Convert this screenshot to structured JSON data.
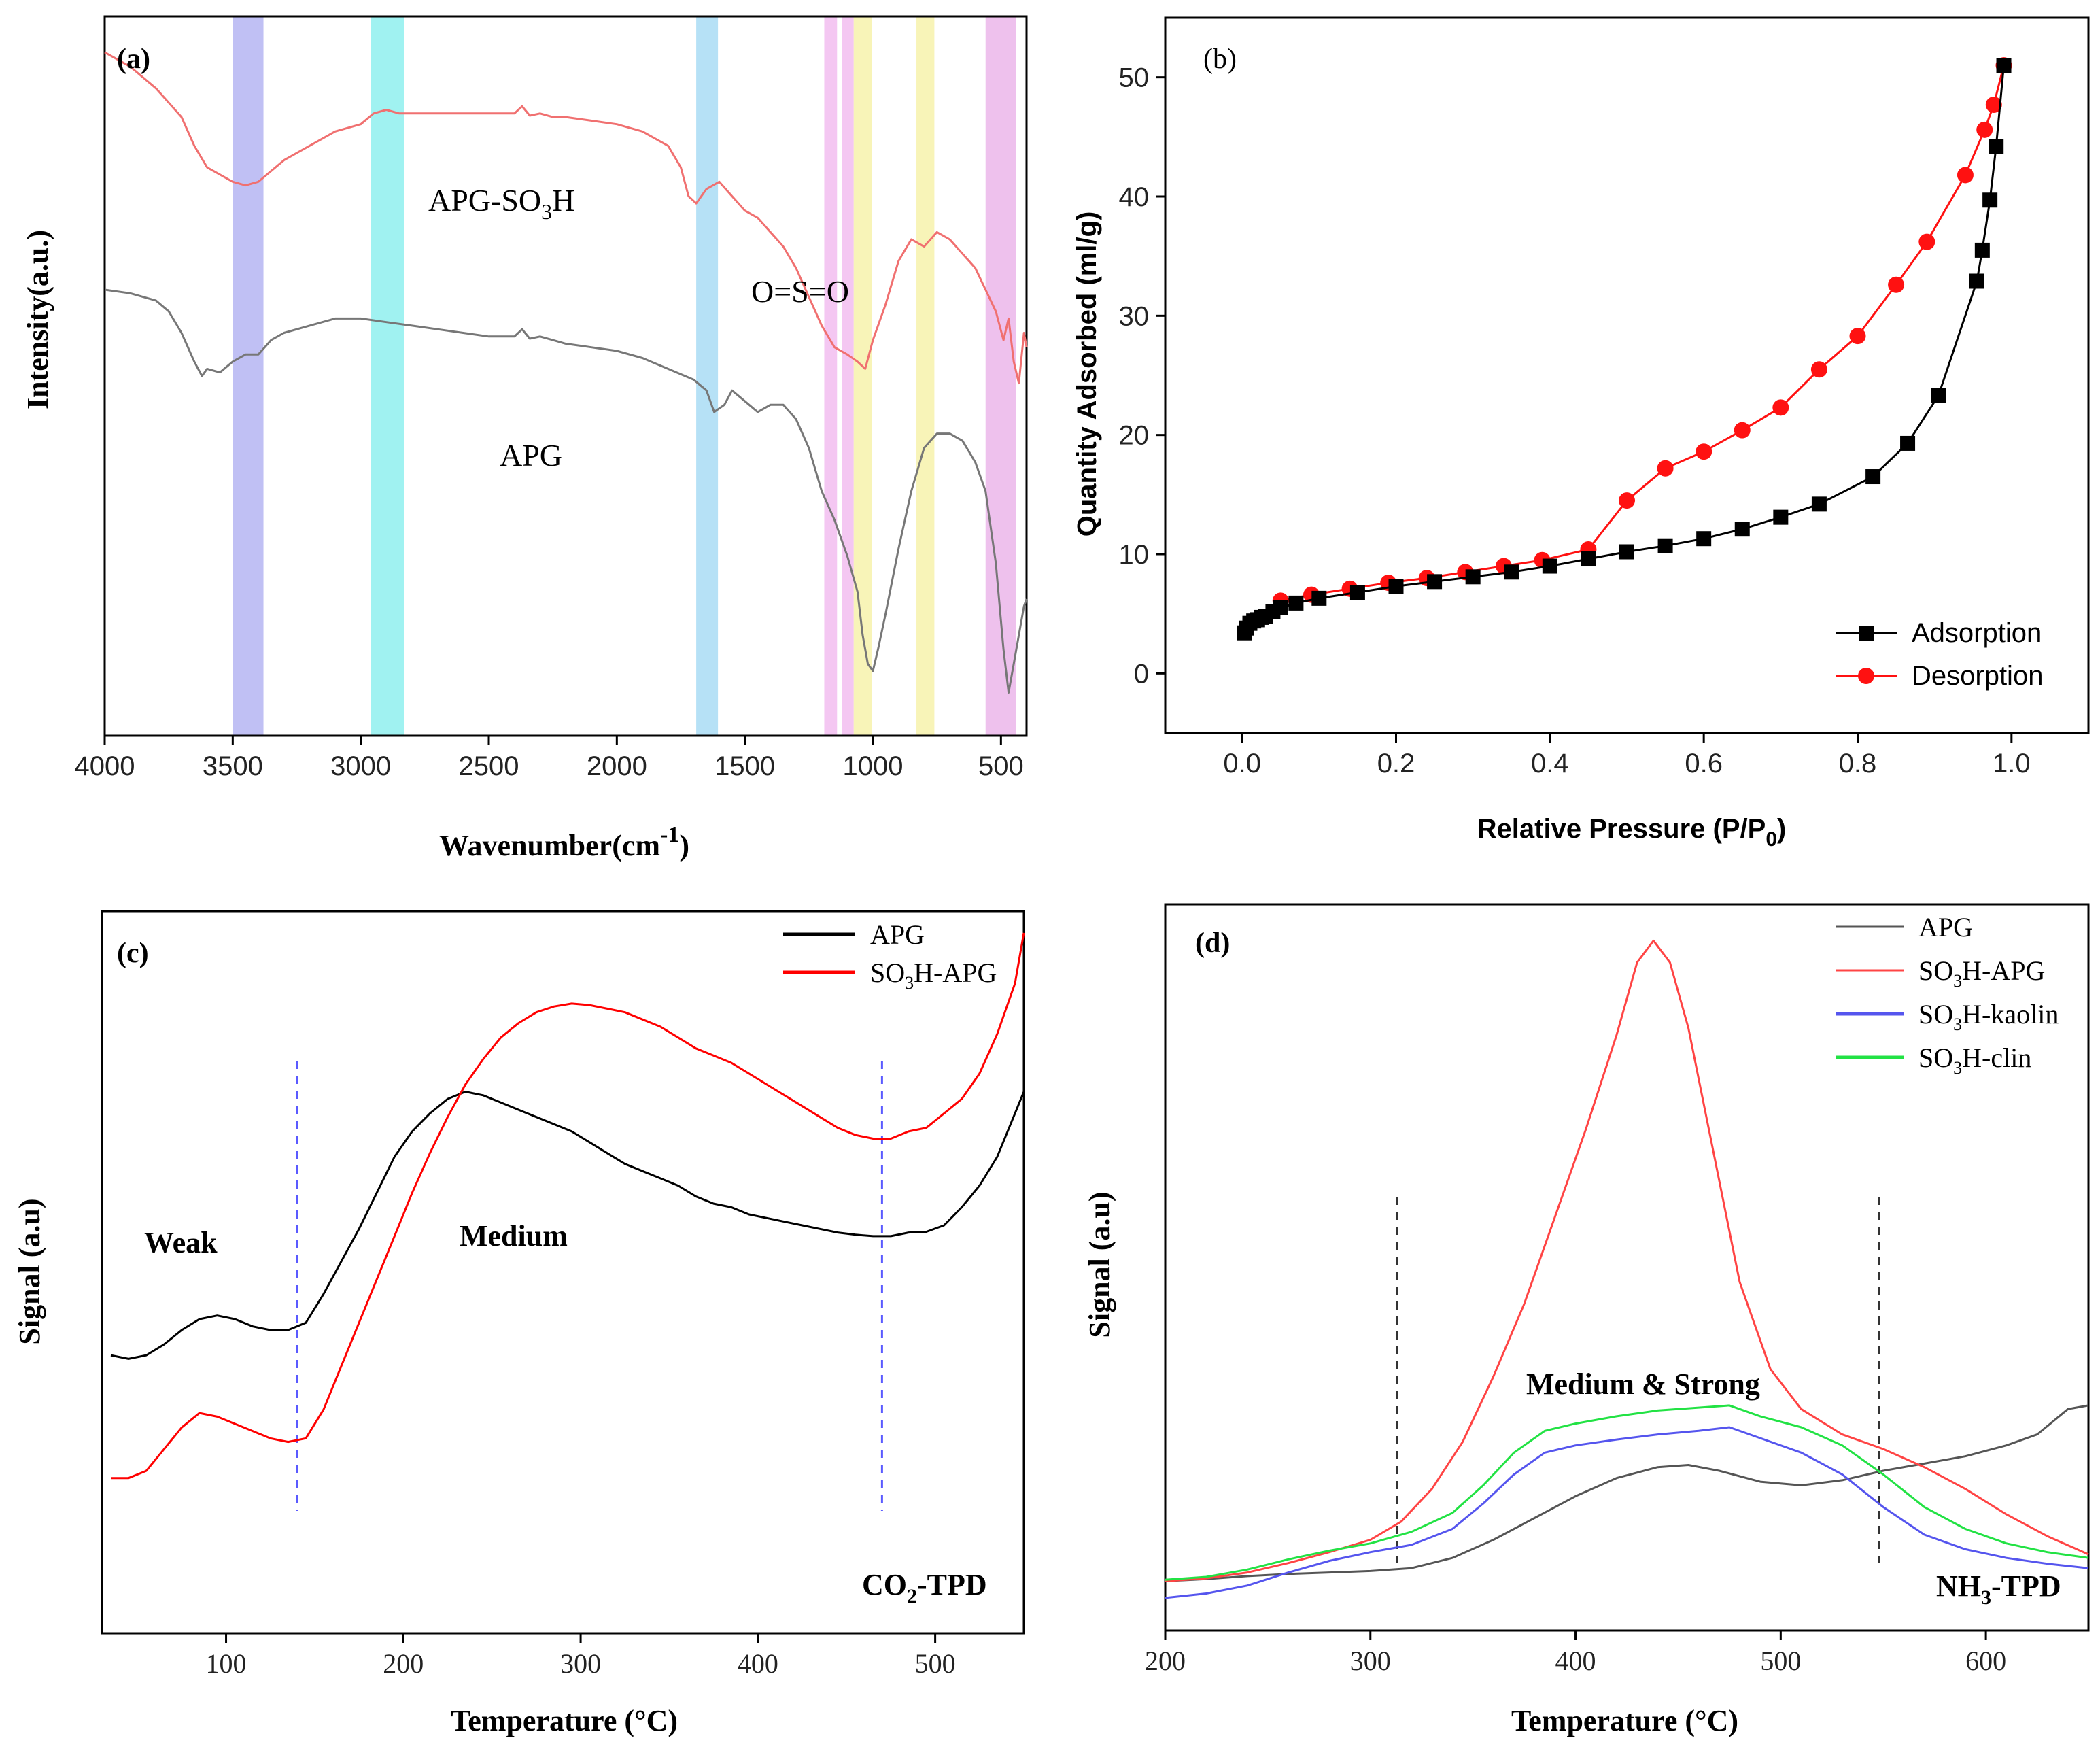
{
  "chart_data": [
    {
      "panel": "(a)",
      "type": "line",
      "xlabel": "Wavenumber(cm",
      "xlabel_sup": "-1",
      "xlabel_end": ")",
      "ylabel": "Intensity(a.u.)",
      "xlim": [
        4000,
        400
      ],
      "xticks": [
        4000,
        3500,
        3000,
        2500,
        2000,
        1500,
        1000,
        500
      ],
      "bands": [
        {
          "from": 3500,
          "to": 3380,
          "color": "#b5b5f2"
        },
        {
          "from": 2960,
          "to": 2830,
          "color": "#8ff0ef"
        },
        {
          "from": 1690,
          "to": 1605,
          "color": "#a9dcf5"
        },
        {
          "from": 1190,
          "to": 1140,
          "color": "#f2bdf0"
        },
        {
          "from": 1120,
          "to": 1075,
          "color": "#f2bdf0"
        },
        {
          "from": 1075,
          "to": 1005,
          "color": "#f7f2ab"
        },
        {
          "from": 830,
          "to": 760,
          "color": "#f7f2ab"
        },
        {
          "from": 560,
          "to": 440,
          "color": "#ebb6ea"
        }
      ],
      "annotations": [
        "APG-SO",
        "3",
        "H",
        "O=S=O",
        "APG"
      ],
      "series": [
        {
          "name": "APG-SO3H",
          "color": "#f07070",
          "x": [
            4000,
            3900,
            3800,
            3700,
            3650,
            3600,
            3500,
            3450,
            3400,
            3350,
            3300,
            3200,
            3100,
            3000,
            2950,
            2900,
            2850,
            2800,
            2700,
            2600,
            2500,
            2400,
            2370,
            2340,
            2300,
            2250,
            2200,
            2100,
            2000,
            1900,
            1800,
            1750,
            1720,
            1690,
            1650,
            1600,
            1550,
            1500,
            1450,
            1400,
            1350,
            1300,
            1250,
            1200,
            1150,
            1100,
            1060,
            1030,
            1000,
            950,
            900,
            850,
            800,
            750,
            700,
            650,
            600,
            560,
            520,
            490,
            470,
            450,
            430,
            410,
            400
          ],
          "y": [
            95,
            93,
            90,
            86,
            82,
            79,
            77,
            76.5,
            77,
            78.5,
            80,
            82,
            84,
            85,
            86.5,
            87,
            86.5,
            86.5,
            86.5,
            86.5,
            86.5,
            86.5,
            87.5,
            86.2,
            86.5,
            86,
            86,
            85.5,
            85,
            84,
            82,
            79,
            75,
            74,
            76,
            77,
            75,
            73,
            72,
            70,
            68,
            65,
            61,
            57,
            54,
            53,
            52,
            51,
            55,
            60,
            66,
            69,
            68,
            70,
            69,
            67,
            65,
            62,
            59,
            55,
            58,
            52,
            49,
            56,
            54
          ]
        },
        {
          "name": "APG",
          "color": "#777777",
          "x": [
            4000,
            3900,
            3800,
            3750,
            3700,
            3650,
            3620,
            3600,
            3550,
            3500,
            3450,
            3400,
            3350,
            3300,
            3200,
            3100,
            3000,
            2900,
            2800,
            2700,
            2600,
            2500,
            2400,
            2370,
            2340,
            2300,
            2250,
            2200,
            2100,
            2000,
            1900,
            1800,
            1700,
            1650,
            1620,
            1580,
            1550,
            1500,
            1450,
            1400,
            1350,
            1300,
            1250,
            1200,
            1150,
            1100,
            1060,
            1040,
            1020,
            1000,
            980,
            950,
            900,
            850,
            800,
            750,
            700,
            650,
            600,
            560,
            520,
            490,
            470,
            450,
            430,
            410,
            400
          ],
          "y": [
            62,
            61.5,
            60.5,
            59,
            56,
            52,
            50,
            51,
            50.5,
            52,
            53,
            53,
            55,
            56,
            57,
            58,
            58,
            57.5,
            57,
            56.5,
            56,
            55.5,
            55.5,
            56.5,
            55.2,
            55.5,
            55,
            54.5,
            54,
            53.5,
            52.5,
            51,
            49.5,
            48,
            45,
            46,
            48,
            46.5,
            45,
            46,
            46,
            44,
            40,
            34,
            30,
            25,
            20,
            14,
            10,
            9,
            12,
            17,
            26,
            34,
            40,
            42,
            42,
            41,
            38,
            34,
            24,
            12,
            6,
            10,
            14,
            18,
            19
          ]
        }
      ]
    },
    {
      "panel": "(b)",
      "type": "line",
      "xlabel": "Relative Pressure (P/P",
      "xlabel_sub": "0",
      "xlabel_end": ")",
      "ylabel": "Quantity Adsorbed (ml/g)",
      "xlim": [
        -0.1,
        1.1
      ],
      "ylim": [
        -5,
        55
      ],
      "xticks": [
        0.0,
        0.2,
        0.4,
        0.6,
        0.8,
        1.0
      ],
      "xtick_labels": [
        "0.0",
        "0.2",
        "0.4",
        "0.6",
        "0.8",
        "1.0"
      ],
      "yticks": [
        0,
        10,
        20,
        30,
        40,
        50
      ],
      "legend": [
        "Adsorption",
        "Desorption"
      ],
      "series": [
        {
          "name": "Adsorption",
          "color": "#000000",
          "marker": "square",
          "x": [
            0.003,
            0.006,
            0.01,
            0.015,
            0.02,
            0.025,
            0.03,
            0.04,
            0.05,
            0.07,
            0.1,
            0.15,
            0.2,
            0.25,
            0.3,
            0.35,
            0.4,
            0.45,
            0.5,
            0.55,
            0.6,
            0.65,
            0.7,
            0.75,
            0.82,
            0.865,
            0.905,
            0.955,
            0.962,
            0.972,
            0.98,
            0.99
          ],
          "y": [
            3.4,
            3.8,
            4.2,
            4.4,
            4.5,
            4.7,
            4.8,
            5.2,
            5.5,
            5.9,
            6.3,
            6.8,
            7.3,
            7.7,
            8.1,
            8.5,
            9.0,
            9.6,
            10.2,
            10.7,
            11.3,
            12.1,
            13.1,
            14.2,
            16.5,
            19.3,
            23.3,
            32.9,
            35.5,
            39.7,
            44.2,
            51.0
          ]
        },
        {
          "name": "Desorption",
          "color": "#ff1111",
          "marker": "circle",
          "x": [
            0.05,
            0.09,
            0.14,
            0.19,
            0.24,
            0.29,
            0.34,
            0.39,
            0.45,
            0.5,
            0.55,
            0.6,
            0.65,
            0.7,
            0.75,
            0.8,
            0.85,
            0.89,
            0.94,
            0.965,
            0.977,
            0.99
          ],
          "y": [
            6.1,
            6.6,
            7.1,
            7.6,
            8.0,
            8.5,
            9.0,
            9.5,
            10.4,
            14.5,
            17.2,
            18.6,
            20.4,
            22.3,
            25.5,
            28.3,
            32.6,
            36.2,
            41.8,
            45.6,
            47.7,
            51.0
          ]
        }
      ]
    },
    {
      "panel": "(c)",
      "type": "line",
      "xlabel": "Temperature (°C)",
      "ylabel": "Signal (a.u)",
      "xlim": [
        30,
        550
      ],
      "ylim": [
        0,
        100
      ],
      "xticks": [
        100,
        200,
        300,
        400,
        500
      ],
      "dividers": [
        140,
        470
      ],
      "annotations": [
        "Weak",
        "Medium",
        "CO",
        "2",
        "-TPD"
      ],
      "legend": [
        "APG",
        "SO",
        "3",
        "H-APG"
      ],
      "series": [
        {
          "name": "APG",
          "color": "#000000",
          "x": [
            35,
            45,
            55,
            65,
            75,
            85,
            95,
            105,
            115,
            125,
            135,
            145,
            155,
            165,
            175,
            185,
            195,
            205,
            215,
            225,
            235,
            245,
            255,
            265,
            275,
            285,
            295,
            305,
            315,
            325,
            335,
            345,
            355,
            365,
            375,
            385,
            395,
            405,
            415,
            425,
            435,
            445,
            455,
            465,
            475,
            485,
            495,
            505,
            515,
            525,
            535,
            545,
            550
          ],
          "y": [
            38.5,
            38,
            38.5,
            40,
            42,
            43.5,
            44,
            43.5,
            42.5,
            42,
            42,
            43,
            47,
            51.5,
            56,
            61,
            66,
            69.5,
            72,
            74,
            75,
            74.5,
            73.5,
            72.5,
            71.5,
            70.5,
            69.5,
            68,
            66.5,
            65,
            64,
            63,
            62,
            60.5,
            59.5,
            59,
            58,
            57.5,
            57,
            56.5,
            56,
            55.5,
            55.2,
            55,
            55,
            55.5,
            55.6,
            56.5,
            59,
            62,
            66,
            72,
            75
          ]
        },
        {
          "name": "SO3H-APG",
          "color": "#ff0000",
          "x": [
            35,
            45,
            55,
            65,
            75,
            85,
            95,
            105,
            115,
            125,
            135,
            145,
            155,
            165,
            175,
            185,
            195,
            205,
            215,
            225,
            235,
            245,
            255,
            265,
            275,
            285,
            295,
            305,
            315,
            325,
            335,
            345,
            355,
            365,
            375,
            385,
            395,
            405,
            415,
            425,
            435,
            445,
            455,
            465,
            475,
            485,
            495,
            505,
            515,
            525,
            535,
            545,
            550
          ],
          "y": [
            21.5,
            21.5,
            22.5,
            25.5,
            28.5,
            30.5,
            30,
            29,
            28,
            27,
            26.5,
            27,
            31,
            37,
            43,
            49,
            55,
            61,
            66.5,
            71.5,
            76,
            79.5,
            82.5,
            84.5,
            86,
            86.8,
            87.2,
            87,
            86.5,
            86,
            85,
            84,
            82.5,
            81,
            80,
            79,
            77.5,
            76,
            74.5,
            73,
            71.5,
            70,
            69,
            68.5,
            68.5,
            69.5,
            70,
            72,
            74,
            77.5,
            83,
            90,
            97
          ]
        }
      ]
    },
    {
      "panel": "(d)",
      "type": "line",
      "xlabel": "Temperature (°C)",
      "ylabel": "Signal (a.u)",
      "xlim": [
        200,
        650
      ],
      "ylim": [
        0,
        100
      ],
      "xticks": [
        200,
        300,
        400,
        500,
        600
      ],
      "dividers": [
        313,
        548
      ],
      "annotations": [
        "Medium & Strong",
        "NH",
        "3",
        "-TPD"
      ],
      "legend": [
        "APG",
        "SO",
        "3",
        "H-APG",
        "SO",
        "3",
        "H-kaolin",
        "SO",
        "3",
        "H-clin"
      ],
      "series": [
        {
          "name": "APG",
          "color": "#555555",
          "x": [
            200,
            220,
            240,
            260,
            280,
            300,
            320,
            340,
            360,
            380,
            400,
            420,
            440,
            455,
            470,
            490,
            510,
            530,
            550,
            570,
            590,
            610,
            625,
            640,
            650
          ],
          "y": [
            6.8,
            7.1,
            7.5,
            7.8,
            8.0,
            8.2,
            8.6,
            10,
            12.5,
            15.5,
            18.5,
            21,
            22.5,
            22.8,
            22,
            20.5,
            20,
            20.7,
            22,
            23,
            24,
            25.5,
            27,
            30.5,
            31
          ]
        },
        {
          "name": "SO3H-APG",
          "color": "#ff4444",
          "x": [
            200,
            220,
            240,
            260,
            280,
            300,
            315,
            330,
            345,
            360,
            375,
            390,
            405,
            420,
            430,
            438,
            446,
            455,
            465,
            480,
            495,
            510,
            530,
            550,
            570,
            590,
            610,
            630,
            650
          ],
          "y": [
            6.8,
            7.2,
            8.0,
            9.3,
            10.8,
            12.5,
            15,
            19.5,
            26,
            35,
            45,
            57,
            69,
            82,
            92,
            95,
            92,
            83,
            69,
            48,
            36,
            30.5,
            27,
            25,
            22.5,
            19.5,
            16,
            13,
            10.5
          ]
        },
        {
          "name": "SO3H-kaolin",
          "color": "#5555ee",
          "x": [
            200,
            220,
            240,
            260,
            280,
            300,
            320,
            340,
            355,
            370,
            385,
            400,
            420,
            440,
            460,
            475,
            490,
            510,
            530,
            550,
            570,
            590,
            610,
            630,
            650
          ],
          "y": [
            4.5,
            5.1,
            6.2,
            8,
            9.6,
            10.8,
            11.8,
            14,
            17.5,
            21.5,
            24.5,
            25.5,
            26.3,
            27,
            27.5,
            28,
            26.5,
            24.5,
            21.5,
            17,
            13.2,
            11.2,
            10,
            9.2,
            8.6
          ]
        },
        {
          "name": "SO3H-clin",
          "color": "#22e244",
          "x": [
            200,
            220,
            240,
            260,
            280,
            300,
            320,
            340,
            355,
            370,
            385,
            400,
            420,
            440,
            460,
            475,
            490,
            510,
            530,
            550,
            570,
            590,
            610,
            630,
            650
          ],
          "y": [
            7.0,
            7.4,
            8.4,
            9.8,
            11,
            12,
            13.6,
            16.2,
            20,
            24.5,
            27.5,
            28.5,
            29.5,
            30.3,
            30.7,
            31.0,
            29.5,
            28,
            25.5,
            21.5,
            17,
            14,
            12,
            10.8,
            10
          ]
        }
      ]
    }
  ]
}
